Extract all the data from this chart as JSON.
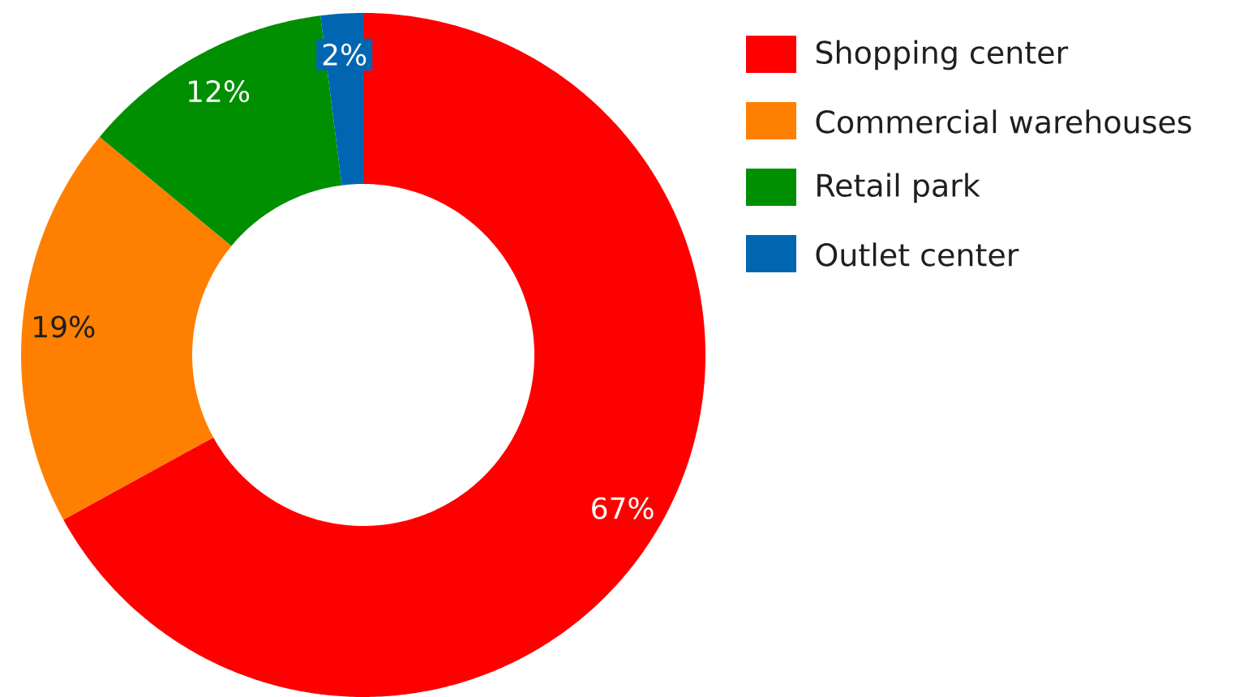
{
  "chart_data": {
    "type": "donut",
    "categories": [
      "Shopping center",
      "Commercial warehouses",
      "Retail park",
      "Outlet center"
    ],
    "values": [
      67,
      19,
      12,
      2
    ],
    "colors": [
      "#ff0000",
      "#ff7f00",
      "#008f00",
      "#0066b2"
    ],
    "value_labels": [
      "67%",
      "19%",
      "12%",
      "2%"
    ],
    "legend": "top right"
  }
}
